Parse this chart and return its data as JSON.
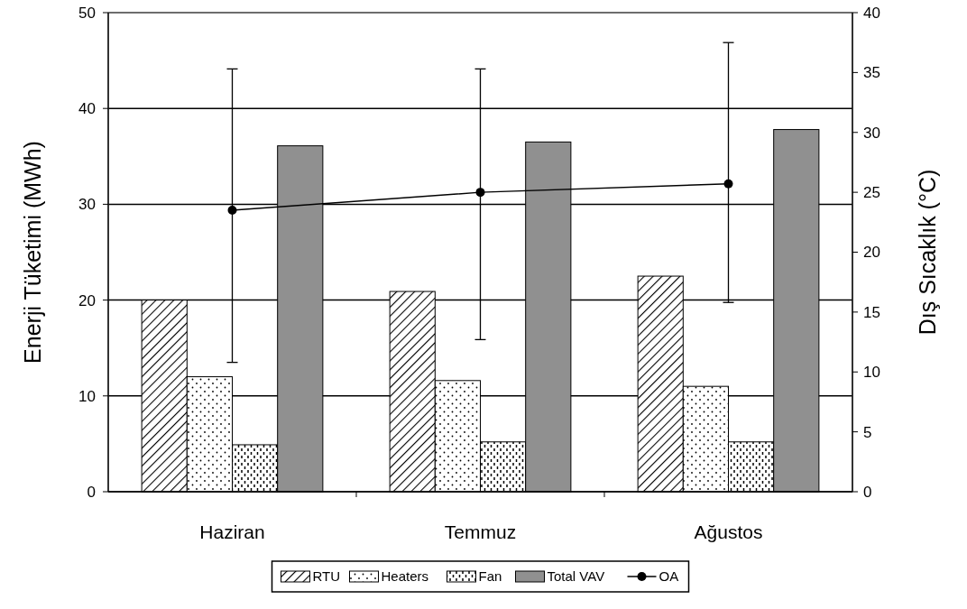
{
  "chart_data": {
    "type": "bar",
    "ylabel": "Enerji Tüketimi (MWh)",
    "y2label": "Dış Sıcaklık (°C)",
    "categories": [
      "Haziran",
      "Temmuz",
      "Ağustos"
    ],
    "series": [
      {
        "name": "RTU",
        "color": "#000000",
        "values": [
          20.0,
          20.9,
          22.5
        ]
      },
      {
        "name": "Heaters",
        "color": "#000000",
        "values": [
          12.0,
          11.6,
          11.0
        ]
      },
      {
        "name": "Fan",
        "color": "#000000",
        "values": [
          4.9,
          5.2,
          5.2
        ]
      },
      {
        "name": "Total VAV",
        "color": "#909090",
        "values": [
          36.1,
          36.5,
          37.8
        ]
      },
      {
        "name": "OA",
        "type": "line",
        "axis": "y2",
        "color": "#000000",
        "marker": "circle",
        "values": [
          23.5,
          25.0,
          25.7
        ],
        "errors": [
          [
            10.8,
            35.3
          ],
          [
            12.7,
            35.3
          ],
          [
            15.8,
            37.5
          ]
        ]
      }
    ],
    "ylim": [
      0,
      50
    ],
    "yticks": [
      0,
      10,
      20,
      30,
      40,
      50
    ],
    "y2lim": [
      0,
      40
    ],
    "y2ticks": [
      0,
      5,
      10,
      15,
      20,
      25,
      30,
      35,
      40
    ],
    "grid": "y",
    "legend": "bottom"
  }
}
